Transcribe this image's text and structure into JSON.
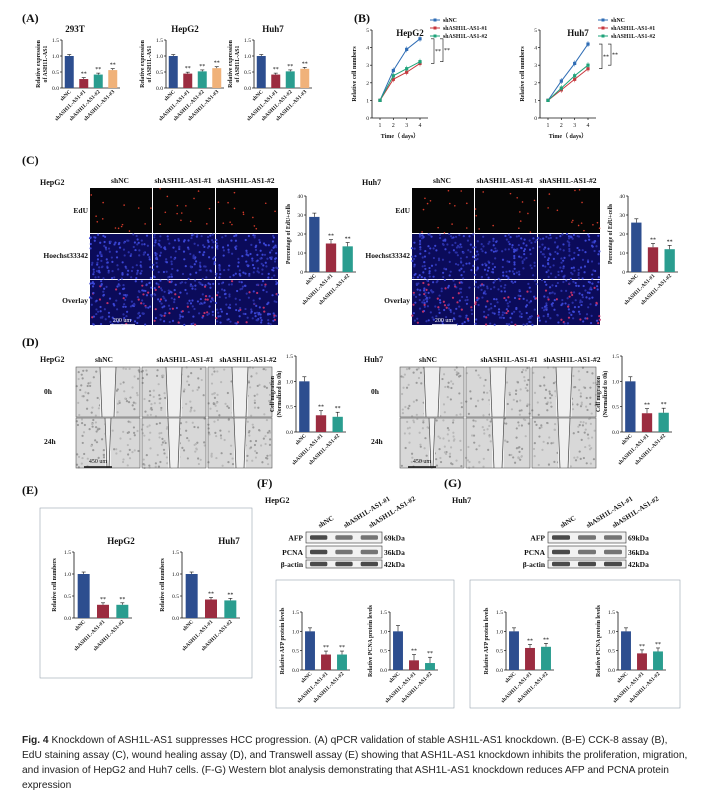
{
  "colors": {
    "navy": "#2d4e8f",
    "crimson": "#9b2c40",
    "teal": "#2a9d8f",
    "orange": "#f0b27a",
    "blue": "#2f6db5",
    "red": "#c8373d",
    "green": "#1ea37a",
    "black": "#111111"
  },
  "panel_letters": {
    "a": "(A)",
    "b": "(B)",
    "c": "(C)",
    "d": "(D)",
    "e": "(E)",
    "f": "(F)",
    "g": "(G)"
  },
  "sig": "**",
  "panelA": {
    "ylabel_line1": "Relative expression",
    "ylabel_line2": "of ASH1L-AS1",
    "categories": [
      "shNC",
      "shASH1L-AS1-#1",
      "shASH1L-AS1-#2",
      "shASH1L-AS1-#3"
    ],
    "charts": [
      {
        "title": "293T",
        "values": [
          1.0,
          0.28,
          0.42,
          0.56
        ],
        "yticks": [
          "0.0",
          "0.5",
          "1.0",
          "1.5"
        ],
        "ylim": [
          0,
          1.5
        ]
      },
      {
        "title": "HepG2",
        "values": [
          1.0,
          0.45,
          0.52,
          0.62
        ],
        "yticks": [
          "0.0",
          "0.5",
          "1.0",
          "1.5"
        ],
        "ylim": [
          0,
          1.5
        ]
      },
      {
        "title": "Huh7",
        "values": [
          1.0,
          0.42,
          0.52,
          0.6
        ],
        "yticks": [
          "0.0",
          "0.5",
          "1.0",
          "1.5"
        ],
        "ylim": [
          0,
          1.5
        ]
      }
    ]
  },
  "panelB": {
    "xlabel": "Time（ days）",
    "ylabel": "Relative cell numbers",
    "x": [
      1,
      2,
      3,
      4
    ],
    "xticks": [
      "1",
      "2",
      "3",
      "4"
    ],
    "yticks": [
      "0",
      "1",
      "2",
      "3",
      "4",
      "5"
    ],
    "ylim": [
      0,
      5
    ],
    "legend": [
      "shNC",
      "shASH1L-AS1-#1",
      "shASH1L-AS1-#2"
    ],
    "charts": [
      {
        "title": "HepG2",
        "series": [
          {
            "name": "shNC",
            "values": [
              1.0,
              2.7,
              3.9,
              4.5
            ]
          },
          {
            "name": "shASH1L-AS1-#1",
            "values": [
              1.0,
              2.2,
              2.6,
              3.1
            ]
          },
          {
            "name": "shASH1L-AS1-#2",
            "values": [
              1.0,
              2.4,
              2.8,
              3.2
            ]
          }
        ]
      },
      {
        "title": "Huh7",
        "series": [
          {
            "name": "shNC",
            "values": [
              1.0,
              2.1,
              3.1,
              4.2
            ]
          },
          {
            "name": "shASH1L-AS1-#1",
            "values": [
              1.0,
              1.6,
              2.2,
              2.8
            ]
          },
          {
            "name": "shASH1L-AS1-#2",
            "values": [
              1.0,
              1.7,
              2.4,
              3.0
            ]
          }
        ]
      }
    ]
  },
  "panelC": {
    "cols": [
      "shNC",
      "shASH1L-AS1-#1",
      "shASH1L-AS1-#2"
    ],
    "rows": [
      "EdU",
      "Hoechst33342",
      "Overlay"
    ],
    "scale": "200 um",
    "ylabel": "Percentage of EdU+cells",
    "cells": [
      {
        "name": "HepG2"
      },
      {
        "name": "Huh7"
      }
    ],
    "charts": [
      {
        "values": [
          29,
          15,
          13.5
        ],
        "yticks": [
          "0",
          "10",
          "20",
          "30",
          "40"
        ],
        "ylim": [
          0,
          40
        ]
      },
      {
        "values": [
          26,
          13,
          12
        ],
        "yticks": [
          "0",
          "10",
          "20",
          "30",
          "40"
        ],
        "ylim": [
          0,
          40
        ]
      }
    ]
  },
  "panelD": {
    "cols": [
      "shNC",
      "shASH1L-AS1-#1",
      "shASH1L-AS1-#2"
    ],
    "rows": [
      "0h",
      "24h"
    ],
    "scale": "450 um",
    "ylabel_line1": "Cell migration",
    "ylabel_line2": "(Normalized to 0h)",
    "cells": [
      {
        "name": "HepG2"
      },
      {
        "name": "Huh7"
      }
    ],
    "charts": [
      {
        "values": [
          1.0,
          0.33,
          0.3
        ],
        "yticks": [
          "0.0",
          "0.5",
          "1.0",
          "1.5"
        ],
        "ylim": [
          0,
          1.5
        ]
      },
      {
        "values": [
          1.0,
          0.37,
          0.38
        ],
        "yticks": [
          "0.0",
          "0.5",
          "1.0",
          "1.5"
        ],
        "ylim": [
          0,
          1.5
        ]
      }
    ]
  },
  "panelE": {
    "ylabel": "Relative cell numbers",
    "categories": [
      "shNC",
      "shASH1L-AS1-#1",
      "shASH1L-AS1-#2"
    ],
    "charts": [
      {
        "title": "HepG2",
        "values": [
          1.0,
          0.3,
          0.3
        ],
        "yticks": [
          "0.0",
          "0.5",
          "1.0",
          "1.5"
        ],
        "ylim": [
          0,
          1.5
        ]
      },
      {
        "title": "Huh7",
        "values": [
          1.0,
          0.42,
          0.4
        ],
        "yticks": [
          "0.0",
          "0.5",
          "1.0",
          "1.5"
        ],
        "ylim": [
          0,
          1.5
        ]
      }
    ]
  },
  "panelF": {
    "cell": "HepG2",
    "lanes": [
      "shNC",
      "shASH1L-AS1-#1",
      "shASH1L-AS1-#2"
    ],
    "proteins": [
      {
        "name": "AFP",
        "kda": "69kDa"
      },
      {
        "name": "PCNA",
        "kda": "36kDa"
      },
      {
        "name": "β-actin",
        "kda": "42kDa"
      }
    ],
    "categories": [
      "shNC",
      "shASH1L-AS1-#1",
      "shASH1L-AS1-#2"
    ],
    "charts": [
      {
        "ylabel": "Relative AFP protein levels",
        "values": [
          1.0,
          0.4,
          0.4
        ],
        "yticks": [
          "0.0",
          "0.5",
          "1.0",
          "1.5"
        ],
        "ylim": [
          0,
          1.5
        ]
      },
      {
        "ylabel": "Relative PCNA protein levels",
        "values": [
          1.0,
          0.25,
          0.18
        ],
        "yticks": [
          "0.0",
          "0.5",
          "1.0",
          "1.5"
        ],
        "ylim": [
          0,
          1.5
        ]
      }
    ]
  },
  "panelG": {
    "cell": "Huh7",
    "lanes": [
      "shNC",
      "shASH1L-AS1-#1",
      "shASH1L-AS1-#2"
    ],
    "proteins": [
      {
        "name": "AFP",
        "kda": "69kDa"
      },
      {
        "name": "PCNA",
        "kda": "36kDa"
      },
      {
        "name": "β-actin",
        "kda": "42kDa"
      }
    ],
    "categories": [
      "shNC",
      "shASH1L-AS1-#1",
      "shASH1L-AS1-#2"
    ],
    "charts": [
      {
        "ylabel": "Relative AFP protein levels",
        "values": [
          1.0,
          0.57,
          0.6
        ],
        "yticks": [
          "0.0",
          "0.5",
          "1.0",
          "1.5"
        ],
        "ylim": [
          0,
          1.5
        ]
      },
      {
        "ylabel": "Relative PCNA protein levels",
        "values": [
          1.0,
          0.43,
          0.48
        ],
        "yticks": [
          "0.0",
          "0.5",
          "1.0",
          "1.5"
        ],
        "ylim": [
          0,
          1.5
        ]
      }
    ]
  },
  "caption": {
    "label": "Fig. 4",
    "text": "Knockdown of ASH1L-AS1 suppresses HCC progression. (A) qPCR validation of stable ASH1L-AS1 knockdown. (B-E) CCK-8 assay (B), EdU staining assay (C), wound healing assay (D), and Transwell assay (E) showing that ASH1L-AS1 knockdown inhibits the proliferation, migration, and invasion of HepG2 and Huh7 cells. (F-G) Western blot analysis demonstrating that ASH1L-AS1 knockdown reduces AFP and PCNA protein expression"
  }
}
